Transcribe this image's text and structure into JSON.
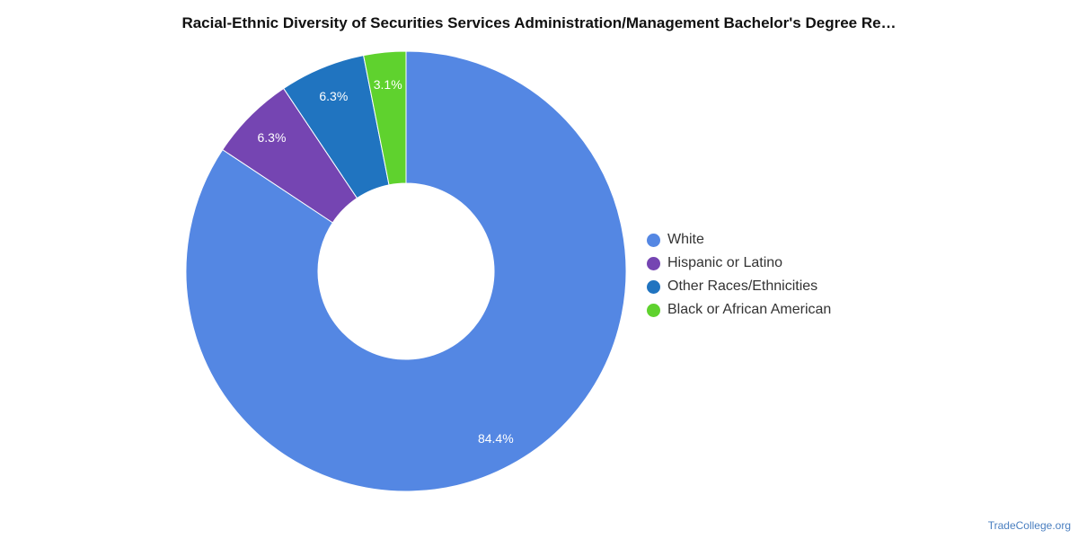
{
  "chart_data": {
    "type": "pie",
    "title": "Racial-Ethnic Diversity of Securities Services Administration/Management Bachelor's Degree Re…",
    "donut": true,
    "categories": [
      "White",
      "Hispanic or Latino",
      "Other Races/Ethnicities",
      "Black or African American"
    ],
    "values": [
      84.4,
      6.3,
      6.3,
      3.1
    ],
    "labels": [
      "84.4%",
      "6.3%",
      "6.3%",
      "3.1%"
    ],
    "colors": [
      "#5487e3",
      "#7545b2",
      "#2074c0",
      "#5fd22e"
    ],
    "legend_position": "right"
  },
  "credit": "TradeCollege.org"
}
